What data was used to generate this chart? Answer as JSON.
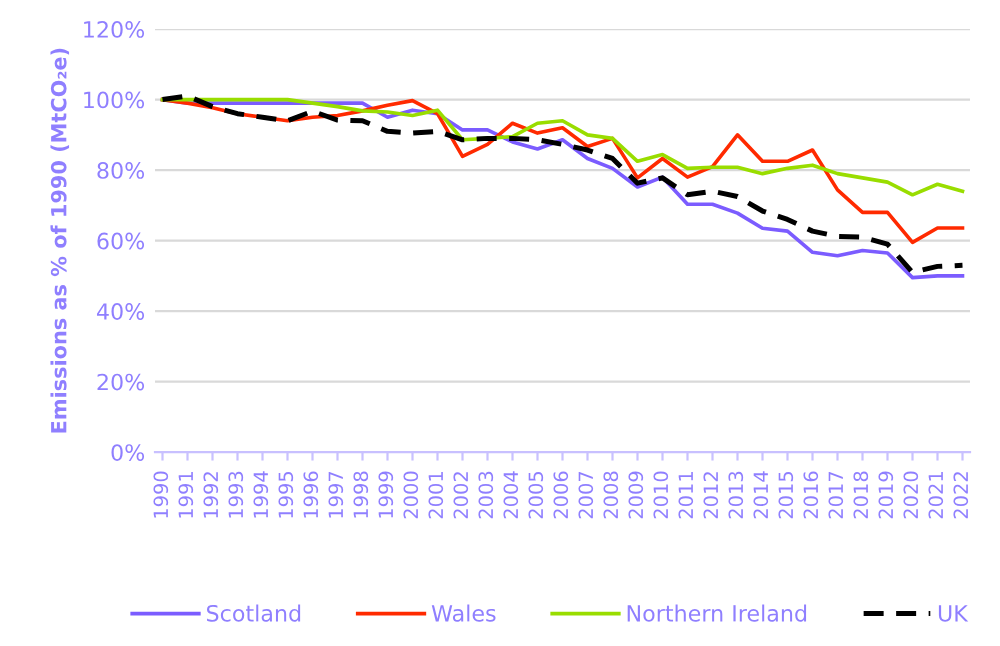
{
  "chart_data": {
    "type": "line",
    "ylabel": "Emissions as % of 1990 (MtCO₂e)",
    "categories": [
      "1990",
      "1991",
      "1992",
      "1993",
      "1994",
      "1995",
      "1996",
      "1997",
      "1998",
      "1999",
      "2000",
      "2001",
      "2002",
      "2003",
      "2004",
      "2005",
      "2006",
      "2007",
      "2008",
      "2009",
      "2010",
      "2011",
      "2012",
      "2013",
      "2014",
      "2015",
      "2016",
      "2017",
      "2018",
      "2019",
      "2020",
      "2021",
      "2022"
    ],
    "series": [
      {
        "name": "Scotland",
        "color": "#7b5cff",
        "values": [
          100,
          99,
          99,
          99,
          99,
          99,
          99,
          99,
          99,
          95,
          97,
          96,
          91.4,
          91.4,
          88,
          86,
          88.6,
          83.3,
          80.5,
          75.2,
          78,
          70.3,
          70.3,
          67.8,
          63.5,
          62.7,
          56.7,
          55.7,
          57.2,
          56.5,
          49.5,
          50,
          50
        ]
      },
      {
        "name": "Wales",
        "color": "#ff2a00",
        "values": [
          100,
          99,
          97.7,
          96,
          95,
          94,
          95,
          95.5,
          96.8,
          98.4,
          99.7,
          96,
          83.9,
          87.3,
          93.3,
          90.5,
          92,
          86.7,
          89,
          77.8,
          83.3,
          78,
          81,
          90,
          82.5,
          82.5,
          85.7,
          74.4,
          68,
          68,
          59.5,
          63.6,
          63.6
        ]
      },
      {
        "name": "Northern Ireland",
        "color": "#99dd00",
        "values": [
          100,
          100,
          100,
          100,
          100,
          100,
          99,
          98,
          96.8,
          96.5,
          95.5,
          97,
          88.6,
          89,
          89.5,
          93.3,
          94,
          90,
          89,
          82.5,
          84.4,
          80.5,
          80.8,
          80.8,
          79,
          80.5,
          81.4,
          79,
          77.8,
          76.6,
          73,
          76,
          74
        ]
      },
      {
        "name": "UK",
        "color": "#000000",
        "line_style": "dashed",
        "values": [
          100,
          101,
          98,
          96,
          95,
          94,
          96.7,
          94.2,
          94,
          91,
          90.5,
          91,
          88.6,
          89,
          89,
          88.6,
          87.3,
          85.7,
          83.3,
          76.3,
          77.8,
          73,
          74,
          72.5,
          68.4,
          66,
          62.7,
          61.2,
          61,
          59,
          51,
          52.7,
          53
        ]
      }
    ],
    "ylim": [
      0,
      120
    ],
    "yticks": [
      {
        "value": 0,
        "label": "0%"
      },
      {
        "value": 20,
        "label": "20%"
      },
      {
        "value": 40,
        "label": "40%"
      },
      {
        "value": 60,
        "label": "60%"
      },
      {
        "value": 80,
        "label": "80%"
      },
      {
        "value": 100,
        "label": "100%"
      },
      {
        "value": 120,
        "label": "120%"
      }
    ],
    "grid": "y",
    "legend": "bottom",
    "line_style": "solid",
    "marker": "none"
  }
}
